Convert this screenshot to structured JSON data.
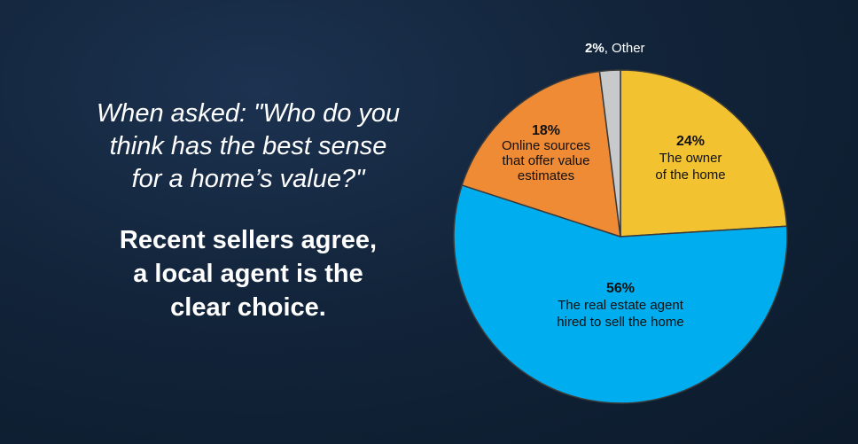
{
  "headline": {
    "question_lines": [
      "When asked: \"Who do you",
      "think has the best sense",
      "for a home’s value?\""
    ],
    "conclusion_lines": [
      "Recent sellers agree,",
      "a local agent is the",
      "clear choice."
    ]
  },
  "chart_data": {
    "type": "pie",
    "start_angle_deg": 0,
    "direction": "clockwise",
    "slices": [
      {
        "key": "owner",
        "value": 24,
        "pct_label": "24%",
        "label_lines": [
          "The owner",
          "of the home"
        ],
        "color": "#f2c230"
      },
      {
        "key": "agent",
        "value": 56,
        "pct_label": "56%",
        "label_lines": [
          "The real estate agent",
          "hired to sell the home"
        ],
        "color": "#00adee"
      },
      {
        "key": "online",
        "value": 18,
        "pct_label": "18%",
        "label_lines": [
          "Online sources",
          "that offer value",
          "estimates"
        ],
        "color": "#ef8a35"
      },
      {
        "key": "other",
        "value": 2,
        "pct_label": "2%",
        "label_lines": [
          "Other"
        ],
        "color": "#c7c9cb"
      }
    ],
    "other_label_separator": ", "
  }
}
